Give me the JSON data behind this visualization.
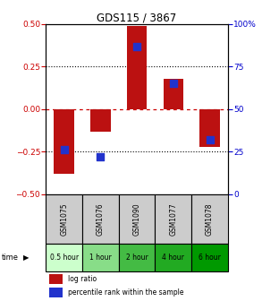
{
  "title": "GDS115 / 3867",
  "samples": [
    "GSM1075",
    "GSM1076",
    "GSM1090",
    "GSM1077",
    "GSM1078"
  ],
  "time_labels": [
    "0.5 hour",
    "1 hour",
    "2 hour",
    "4 hour",
    "6 hour"
  ],
  "time_colors": [
    "#ccffcc",
    "#88dd88",
    "#44bb44",
    "#22aa22",
    "#009900"
  ],
  "log_ratios": [
    -0.38,
    -0.13,
    0.49,
    0.18,
    -0.22
  ],
  "percentile_ranks": [
    26,
    22,
    87,
    65,
    32
  ],
  "ylim_left": [
    -0.5,
    0.5
  ],
  "ylim_right": [
    0,
    100
  ],
  "bar_color": "#bb1111",
  "dot_color": "#2233cc",
  "bar_width": 0.55,
  "dot_size": 28,
  "left_tick_color": "#cc0000",
  "right_tick_color": "#0000cc",
  "yticks_left": [
    -0.5,
    -0.25,
    0,
    0.25,
    0.5
  ],
  "yticks_right": [
    0,
    25,
    50,
    75,
    100
  ],
  "sample_bg_color": "#cccccc",
  "legend_red_label": "log ratio",
  "legend_blue_label": "percentile rank within the sample"
}
